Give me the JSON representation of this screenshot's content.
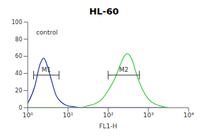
{
  "chart_data": {
    "type": "line",
    "title": "HL-60",
    "x_label": "FL1-H",
    "annotations": [
      "control"
    ],
    "log": "x",
    "xlim": [
      1,
      10000
    ],
    "xticks": [
      {
        "value": 1,
        "label": "10⁰"
      },
      {
        "value": 10,
        "label": "10¹"
      },
      {
        "value": 100,
        "label": "10²"
      },
      {
        "value": 1000,
        "label": "10³"
      },
      {
        "value": 10000,
        "label": "10⁴"
      }
    ],
    "ylim": [
      0,
      100
    ],
    "yticks": [
      0,
      20,
      40,
      60,
      80,
      100
    ],
    "x": [
      1,
      1.5,
      2,
      2.5,
      3,
      4,
      5,
      7,
      10,
      15,
      20,
      30,
      50,
      70,
      100,
      150,
      200,
      250,
      300,
      400,
      500,
      700,
      1000,
      1500,
      2000,
      3000
    ],
    "series": [
      {
        "color": "#1f2fb0",
        "values": [
          5,
          25,
          50,
          58,
          50,
          30,
          15,
          6,
          2,
          1,
          0,
          0,
          0,
          0,
          0,
          0,
          0,
          0,
          0,
          0,
          0,
          0,
          0,
          0,
          0,
          0
        ]
      },
      {
        "color": "#33cc33",
        "values": [
          0,
          0,
          0,
          0,
          0,
          0,
          0,
          0,
          0,
          0,
          0,
          2,
          5,
          10,
          20,
          35,
          50,
          60,
          63,
          55,
          40,
          22,
          10,
          4,
          2,
          0
        ]
      }
    ],
    "gates": [
      {
        "label": "M1",
        "range": [
          1.4,
          6
        ],
        "y": 38
      },
      {
        "label": "M2",
        "range": [
          100,
          600
        ],
        "y": 38
      }
    ]
  }
}
